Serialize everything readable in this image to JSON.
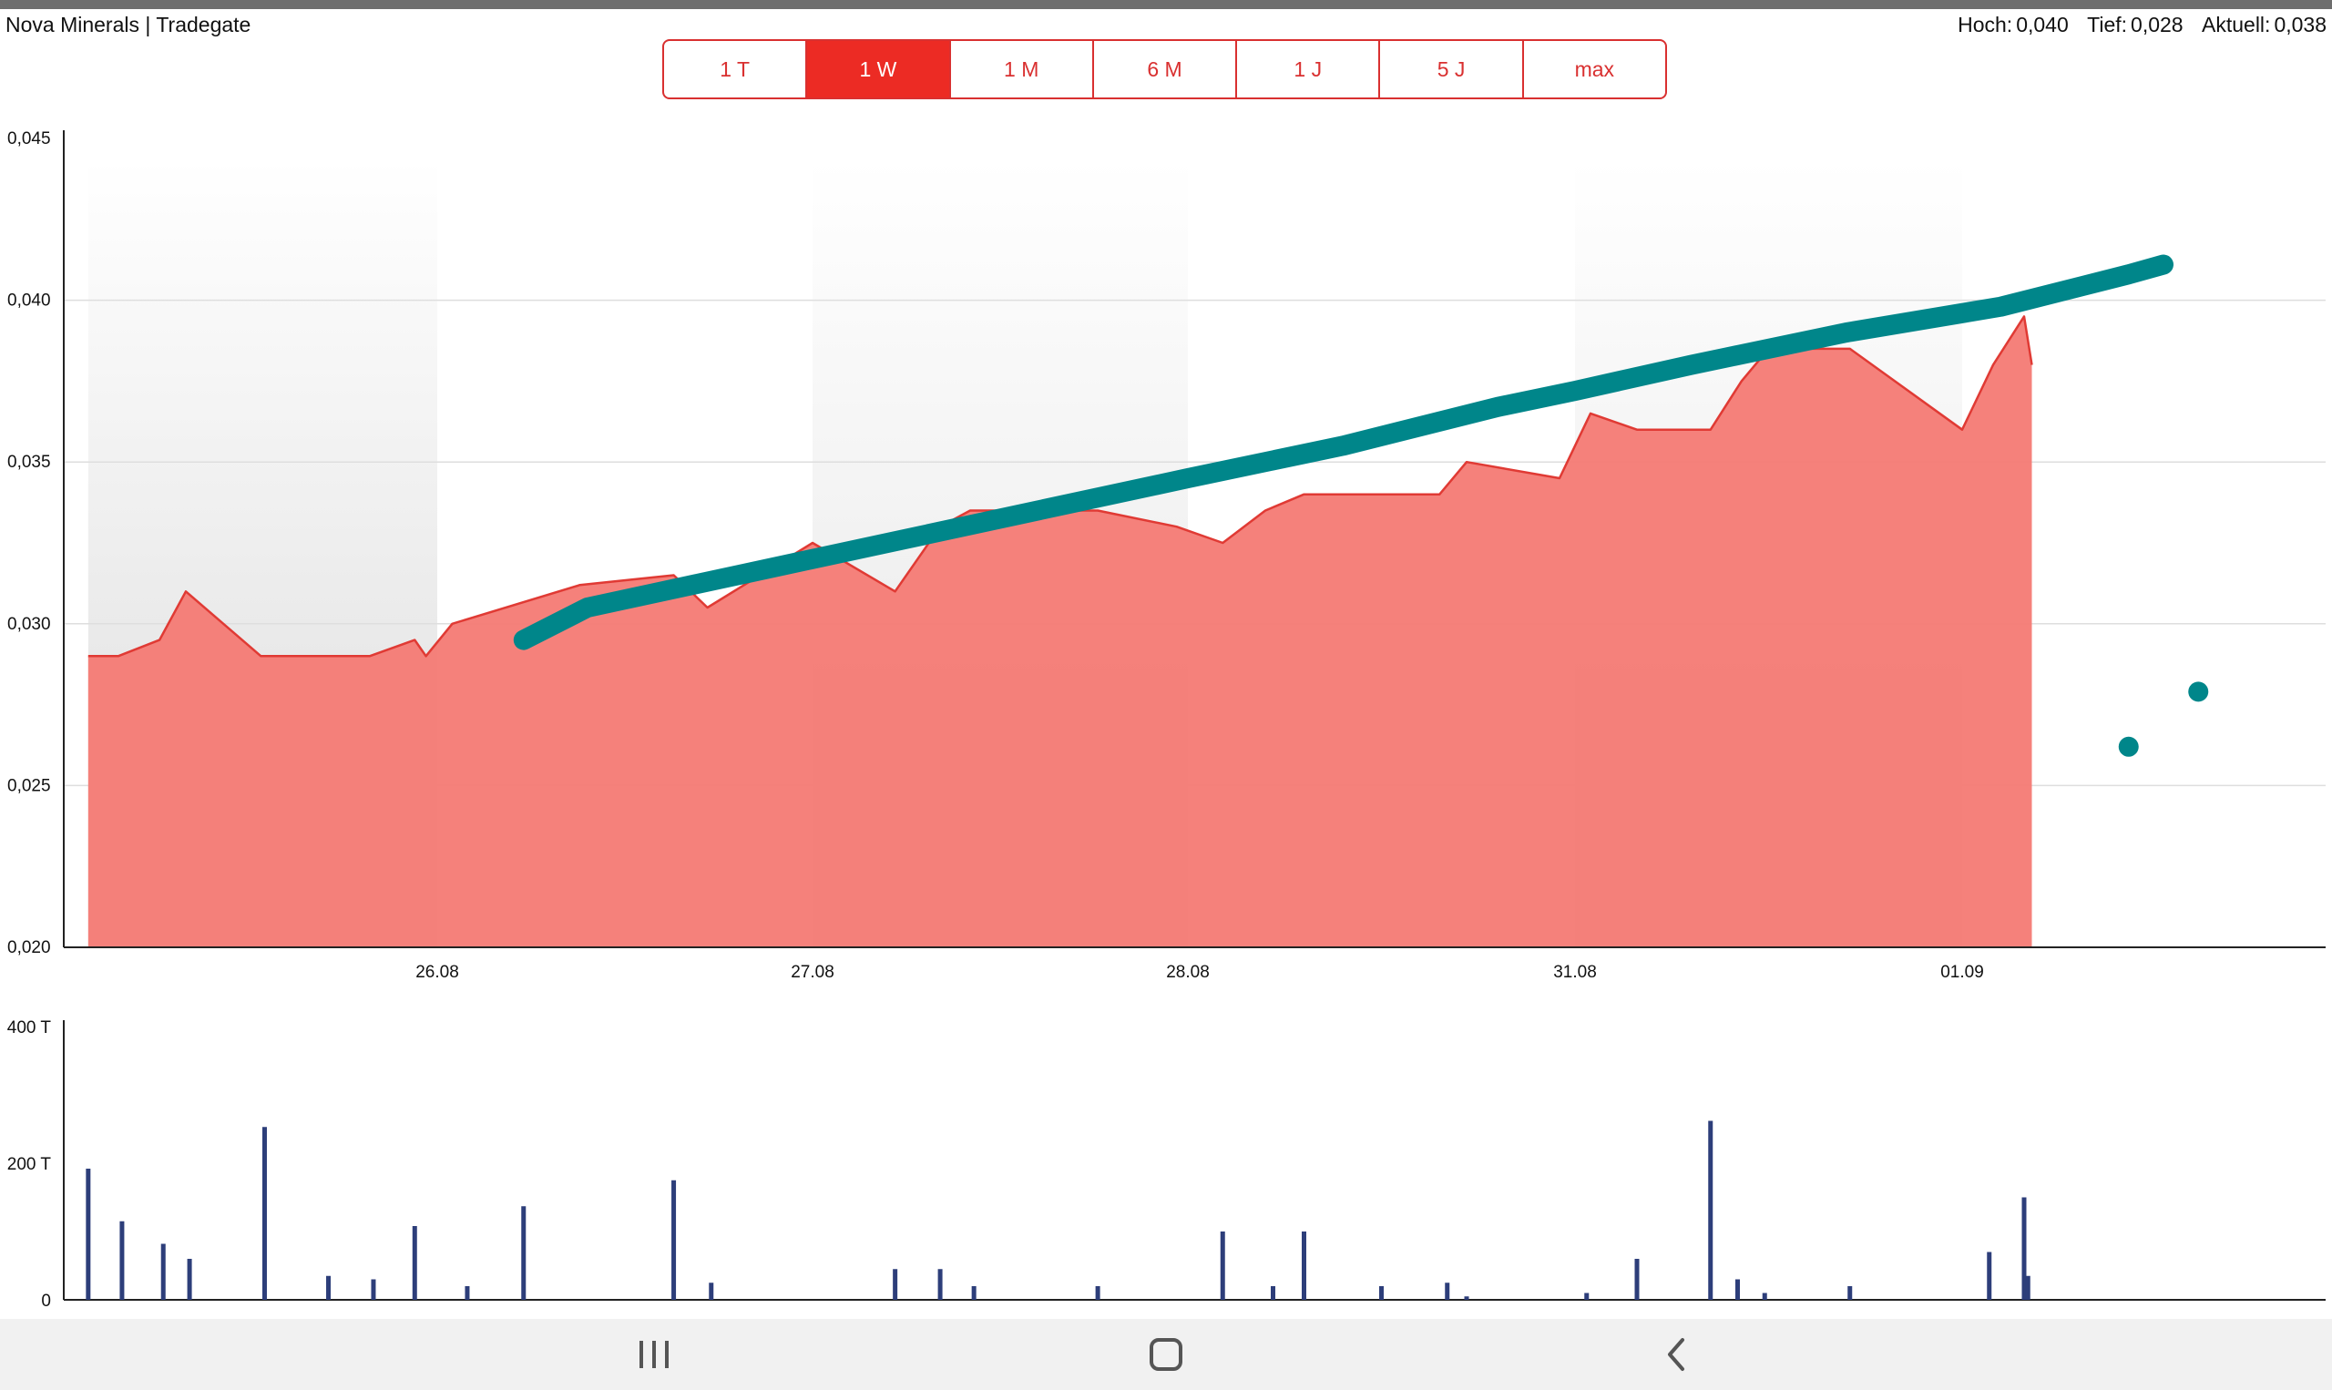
{
  "header": {
    "title": "Nova Minerals | Tradegate",
    "high_label": "Hoch:",
    "high_value": "0,040",
    "low_label": "Tief:",
    "low_value": "0,028",
    "current_label": "Aktuell:",
    "current_value": "0,038"
  },
  "tabs": [
    {
      "label": "1 T",
      "active": false
    },
    {
      "label": "1 W",
      "active": true
    },
    {
      "label": "1 M",
      "active": false
    },
    {
      "label": "6 M",
      "active": false
    },
    {
      "label": "1 J",
      "active": false
    },
    {
      "label": "5 J",
      "active": false
    },
    {
      "label": "max",
      "active": false
    }
  ],
  "navbar": {
    "recent_icon": "recent-apps-icon",
    "home_icon": "home-icon",
    "back_icon": "back-icon"
  },
  "chart_data": {
    "type": "area",
    "price": {
      "y_ticks": [
        "0,045",
        "0,040",
        "0,035",
        "0,030",
        "0,025",
        "0,020"
      ],
      "ylim": [
        0.02,
        0.045
      ],
      "x_ticks": [
        "26.08",
        "27.08",
        "28.08",
        "31.08",
        "01.09"
      ],
      "area_color": "#f47a74",
      "line_color": "#e03a34",
      "points": [
        [
          -0.93,
          0.029
        ],
        [
          -0.85,
          0.029
        ],
        [
          -0.74,
          0.0295
        ],
        [
          -0.67,
          0.031
        ],
        [
          -0.47,
          0.029
        ],
        [
          -0.18,
          0.029
        ],
        [
          -0.06,
          0.0295
        ],
        [
          -0.03,
          0.029
        ],
        [
          0.04,
          0.03
        ],
        [
          0.38,
          0.0312
        ],
        [
          0.63,
          0.0315
        ],
        [
          0.72,
          0.0305
        ],
        [
          1.0,
          0.0325
        ],
        [
          1.22,
          0.031
        ],
        [
          1.34,
          0.033
        ],
        [
          1.42,
          0.0335
        ],
        [
          1.76,
          0.0335
        ],
        [
          1.97,
          0.033
        ],
        [
          2.09,
          0.0325
        ],
        [
          2.2,
          0.0335
        ],
        [
          2.3,
          0.034
        ],
        [
          2.65,
          0.034
        ],
        [
          2.72,
          0.035
        ],
        [
          2.96,
          0.0345
        ],
        [
          3.04,
          0.0365
        ],
        [
          3.16,
          0.036
        ],
        [
          3.35,
          0.036
        ],
        [
          3.43,
          0.0375
        ],
        [
          3.5,
          0.0385
        ],
        [
          3.71,
          0.0385
        ],
        [
          4.0,
          0.036
        ],
        [
          4.08,
          0.038
        ],
        [
          4.16,
          0.0395
        ],
        [
          4.18,
          0.038
        ]
      ]
    },
    "volume": {
      "y_ticks": [
        "400 T",
        "200 T",
        "0"
      ],
      "ylim": [
        0,
        400
      ],
      "bar_color": "#2d3e7a",
      "bars": [
        [
          -0.93,
          192
        ],
        [
          -0.84,
          115
        ],
        [
          -0.73,
          82
        ],
        [
          -0.66,
          60
        ],
        [
          -0.46,
          253
        ],
        [
          -0.29,
          35
        ],
        [
          -0.17,
          30
        ],
        [
          -0.06,
          108
        ],
        [
          0.08,
          20
        ],
        [
          0.23,
          137
        ],
        [
          0.63,
          175
        ],
        [
          0.73,
          25
        ],
        [
          1.22,
          45
        ],
        [
          1.34,
          45
        ],
        [
          1.43,
          20
        ],
        [
          1.76,
          20
        ],
        [
          2.09,
          100
        ],
        [
          2.22,
          20
        ],
        [
          2.3,
          100
        ],
        [
          2.5,
          20
        ],
        [
          2.67,
          25
        ],
        [
          2.72,
          5
        ],
        [
          3.03,
          10
        ],
        [
          3.16,
          60
        ],
        [
          3.35,
          262
        ],
        [
          3.42,
          30
        ],
        [
          3.49,
          10
        ],
        [
          3.71,
          20
        ],
        [
          4.07,
          70
        ],
        [
          4.16,
          150
        ],
        [
          4.17,
          35
        ]
      ]
    },
    "annotation": {
      "stroke_color": "#00868a",
      "points": [
        [
          0.23,
          0.0295
        ],
        [
          0.4,
          0.0305
        ],
        [
          0.8,
          0.0315
        ],
        [
          1.2,
          0.0325
        ],
        [
          1.6,
          0.0335
        ],
        [
          2.0,
          0.0345
        ],
        [
          2.4,
          0.0355
        ],
        [
          2.8,
          0.0367
        ],
        [
          3.0,
          0.0372
        ],
        [
          3.3,
          0.038
        ],
        [
          3.7,
          0.039
        ],
        [
          4.1,
          0.0398
        ],
        [
          4.43,
          0.0408
        ],
        [
          4.52,
          0.0411
        ]
      ],
      "dots": [
        [
          4.43,
          0.0262
        ],
        [
          4.61,
          0.0279
        ]
      ]
    }
  }
}
